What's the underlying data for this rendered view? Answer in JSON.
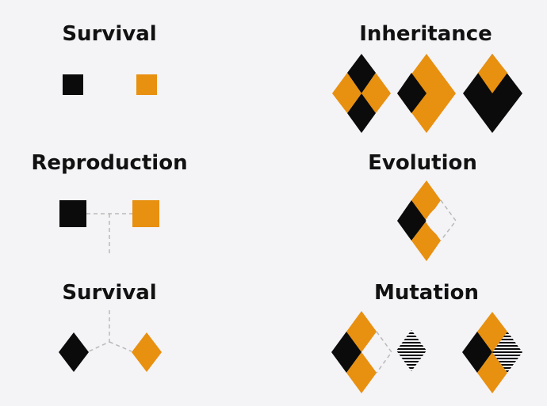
{
  "headings": {
    "survival_top": "Survival",
    "reproduction": "Reproduction",
    "survival_bottom": "Survival",
    "inheritance": "Inheritance",
    "evolution": "Evolution",
    "mutation": "Mutation"
  },
  "colors": {
    "background": "#f4f3f6",
    "black": "#0b0b0b",
    "orange": "#e8900f",
    "dash": "#b9b9b9"
  }
}
